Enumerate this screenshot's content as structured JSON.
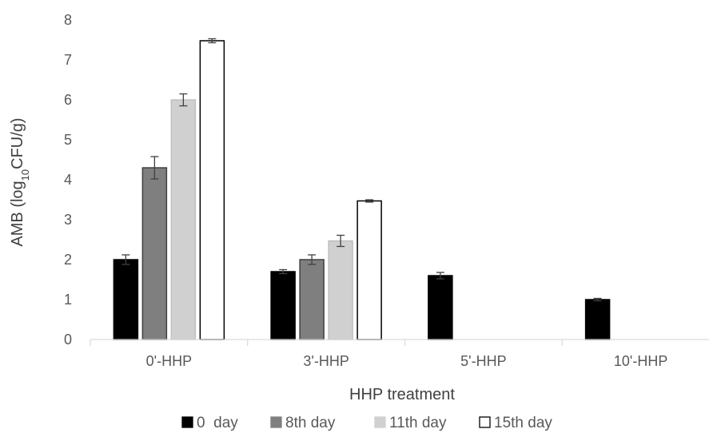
{
  "chart_data": {
    "type": "bar",
    "title": "",
    "xlabel": "HHP treatment",
    "ylabel_main": "AMB (log",
    "ylabel_sub": "10",
    "ylabel_end": "CFU/g)",
    "categories": [
      "0'-HHP",
      "3'-HHP",
      "5'-HHP",
      "10'-HHP"
    ],
    "ylim": [
      0,
      8
    ],
    "yticks": [
      "0",
      "1",
      "2",
      "3",
      "4",
      "5",
      "6",
      "7",
      "8"
    ],
    "grid": false,
    "legend_position": "bottom",
    "series": [
      {
        "name": "0  day",
        "color": "#000000",
        "stroke": "#000000",
        "values": [
          2.0,
          1.7,
          1.6,
          1.0
        ],
        "errors": [
          0.12,
          0.05,
          0.08,
          0.03
        ]
      },
      {
        "name": "8th day",
        "color": "#7f7f7f",
        "stroke": "#404040",
        "values": [
          4.3,
          2.0,
          null,
          null
        ],
        "errors": [
          0.28,
          0.12,
          null,
          null
        ]
      },
      {
        "name": "11th day",
        "color": "#d0d0d0",
        "stroke": "#bfbfbf",
        "values": [
          6.0,
          2.47,
          null,
          null
        ],
        "errors": [
          0.15,
          0.14,
          null,
          null
        ]
      },
      {
        "name": "15th day",
        "color": "#ffffff",
        "stroke": "#000000",
        "values": [
          7.48,
          3.47,
          null,
          null
        ],
        "errors": [
          0.05,
          0.03,
          null,
          null
        ]
      }
    ]
  }
}
